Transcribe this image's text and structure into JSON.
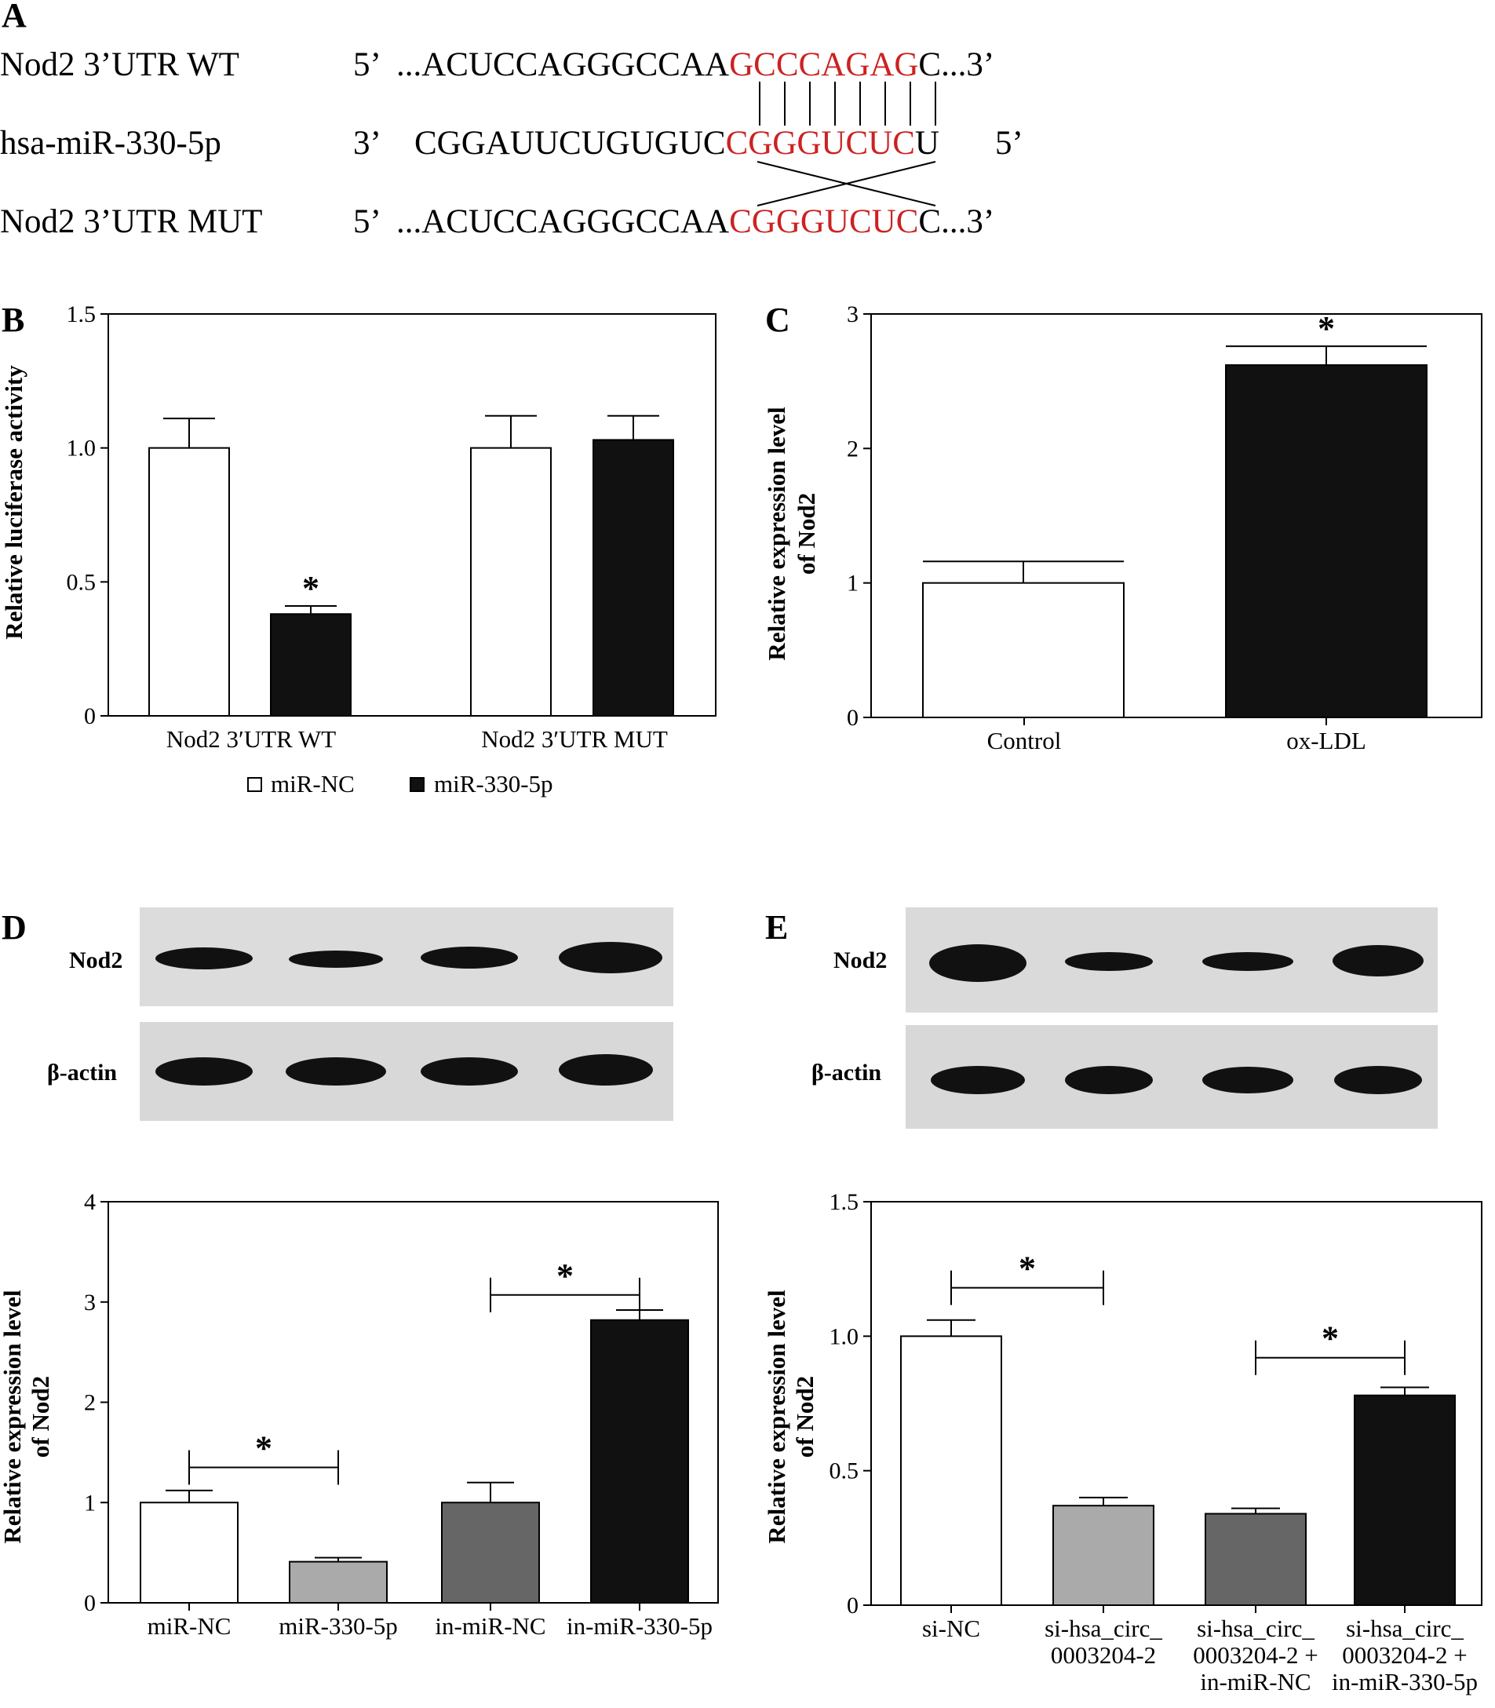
{
  "panels": {
    "A": {
      "letter": "A",
      "rows": [
        {
          "label": "Nod2 3’UTR WT",
          "end5": "5’",
          "pre": "...ACUCCAGGGCCAA",
          "seed": "GCCCAGAG",
          "post": "C...3’",
          "end3": ""
        },
        {
          "label": "hsa-miR-330-5p",
          "end5": "3’",
          "pre": "CGGAUUCUGUGUC",
          "seed": "CGGGUCUC",
          "post": "U",
          "end3": "5’"
        },
        {
          "label": "Nod2 3’UTR MUT",
          "end5": "5’",
          "pre": "...ACUCCAGGGCCAA",
          "seed": "CGGGUCUC",
          "post": "C...3’",
          "end3": ""
        }
      ],
      "seed_color": "#cc2222"
    },
    "D_blot": {
      "letter": "D",
      "labels": [
        "Nod2",
        "β-actin"
      ]
    },
    "E_blot": {
      "letter": "E",
      "labels": [
        "Nod2",
        "β-actin"
      ]
    }
  },
  "chart_data": [
    {
      "panel": "B",
      "type": "bar",
      "ylabel": "Relative luciferase activity",
      "ylim": [
        0,
        1.5
      ],
      "yticks": [
        "0",
        "0.5",
        "1.0",
        "1.5"
      ],
      "categories": [
        "Nod2 3′UTR WT",
        "Nod2 3′UTR MUT"
      ],
      "series": [
        {
          "name": "miR-NC",
          "values": [
            1.0,
            1.0
          ],
          "errors": [
            0.11,
            0.12
          ],
          "color": "#ffffff"
        },
        {
          "name": "miR-330-5p",
          "values": [
            0.38,
            1.03
          ],
          "errors": [
            0.03,
            0.09
          ],
          "color": "#111111"
        }
      ],
      "annotations": [
        {
          "text": "*",
          "category": 0,
          "series": 1
        }
      ],
      "legend": "bottom",
      "grid": false
    },
    {
      "panel": "C",
      "type": "bar",
      "ylabel": "Relative expression level of Nod2",
      "ylim": [
        0,
        3
      ],
      "yticks": [
        "0",
        "1",
        "2",
        "3"
      ],
      "categories": [
        "Control",
        "ox-LDL"
      ],
      "values": [
        1.0,
        2.62
      ],
      "errors": [
        0.16,
        0.14
      ],
      "colors": [
        "#ffffff",
        "#111111"
      ],
      "annotations": [
        {
          "text": "*",
          "category": 1
        }
      ],
      "grid": false
    },
    {
      "panel": "D",
      "type": "bar",
      "ylabel": "Relative expression level of Nod2",
      "ylim": [
        0,
        4
      ],
      "yticks": [
        "0",
        "1",
        "2",
        "3",
        "4"
      ],
      "categories": [
        "miR-NC",
        "miR-330-5p",
        "in-miR-NC",
        "in-miR-330-5p"
      ],
      "values": [
        1.0,
        0.41,
        1.0,
        2.82
      ],
      "errors": [
        0.12,
        0.04,
        0.2,
        0.1
      ],
      "colors": [
        "#ffffff",
        "#aaaaaa",
        "#666666",
        "#111111"
      ],
      "brackets": [
        {
          "from": 0,
          "to": 1,
          "y": 1.35,
          "text": "*"
        },
        {
          "from": 2,
          "to": 3,
          "y": 3.07,
          "text": "*"
        }
      ],
      "grid": false
    },
    {
      "panel": "E",
      "type": "bar",
      "ylabel": "Relative expression level of Nod2",
      "ylim": [
        0,
        1.5
      ],
      "yticks": [
        "0",
        "0.5",
        "1.0",
        "1.5"
      ],
      "categories": [
        [
          "si-NC"
        ],
        [
          "si-hsa_circ_",
          "0003204-2"
        ],
        [
          "si-hsa_circ_",
          "0003204-2 +",
          "in-miR-NC"
        ],
        [
          "si-hsa_circ_",
          "0003204-2 +",
          "in-miR-330-5p"
        ]
      ],
      "values": [
        1.0,
        0.37,
        0.34,
        0.78
      ],
      "errors": [
        0.06,
        0.03,
        0.02,
        0.03
      ],
      "colors": [
        "#ffffff",
        "#aaaaaa",
        "#666666",
        "#111111"
      ],
      "brackets": [
        {
          "from": 0,
          "to": 1,
          "y": 1.18,
          "text": "*"
        },
        {
          "from": 2,
          "to": 3,
          "y": 0.92,
          "text": "*"
        }
      ],
      "grid": false
    }
  ]
}
